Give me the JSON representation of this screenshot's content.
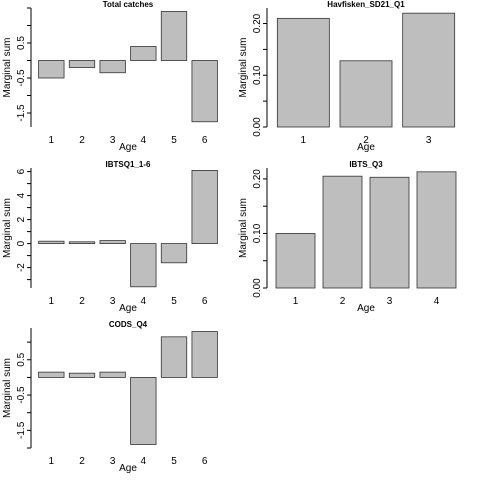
{
  "chart_data": [
    {
      "type": "bar",
      "title": "Total catches",
      "xlabel": "Age",
      "ylabel": "Marginal sum",
      "categories": [
        "1",
        "2",
        "3",
        "4",
        "5",
        "6"
      ],
      "values": [
        -0.5,
        -0.2,
        -0.35,
        0.4,
        1.4,
        -1.75
      ],
      "ylim": [
        -1.9,
        1.5
      ],
      "yticks": [
        "-1.5",
        "-0.5",
        "0.5"
      ],
      "bar_color": "#bebebe"
    },
    {
      "type": "bar",
      "title": "Havfisken_SD21_Q1",
      "xlabel": "Age",
      "ylabel": "Marginal sum",
      "categories": [
        "1",
        "2",
        "3"
      ],
      "values": [
        0.21,
        0.128,
        0.22
      ],
      "ylim": [
        0,
        0.23
      ],
      "yticks": [
        "0.00",
        "0.10",
        "0.20"
      ],
      "bar_color": "#bebebe"
    },
    {
      "type": "bar",
      "title": "IBTSQ1_1-6",
      "xlabel": "Age",
      "ylabel": "Marginal sum",
      "categories": [
        "1",
        "2",
        "3",
        "4",
        "5",
        "6"
      ],
      "values": [
        0.2,
        0.15,
        0.25,
        -3.6,
        -1.6,
        6.1
      ],
      "ylim": [
        -3.7,
        6.3
      ],
      "yticks": [
        "-2",
        "0",
        "2",
        "4",
        "6"
      ],
      "bar_color": "#bebebe"
    },
    {
      "type": "bar",
      "title": "IBTS_Q3",
      "xlabel": "Age",
      "ylabel": "Marginal sum",
      "categories": [
        "1",
        "2",
        "3",
        "4"
      ],
      "values": [
        0.1,
        0.205,
        0.203,
        0.213
      ],
      "ylim": [
        0,
        0.22
      ],
      "yticks": [
        "0.00",
        "0.10",
        "0.20"
      ],
      "bar_color": "#bebebe"
    },
    {
      "type": "bar",
      "title": "CODS_Q4",
      "xlabel": "Age",
      "ylabel": "Marginal sum",
      "categories": [
        "1",
        "2",
        "3",
        "4",
        "5",
        "6"
      ],
      "values": [
        0.15,
        0.12,
        0.15,
        -1.9,
        1.15,
        1.3
      ],
      "ylim": [
        -2.0,
        1.4
      ],
      "yticks": [
        "-1.5",
        "-0.5",
        "0.5"
      ],
      "bar_color": "#bebebe"
    }
  ]
}
